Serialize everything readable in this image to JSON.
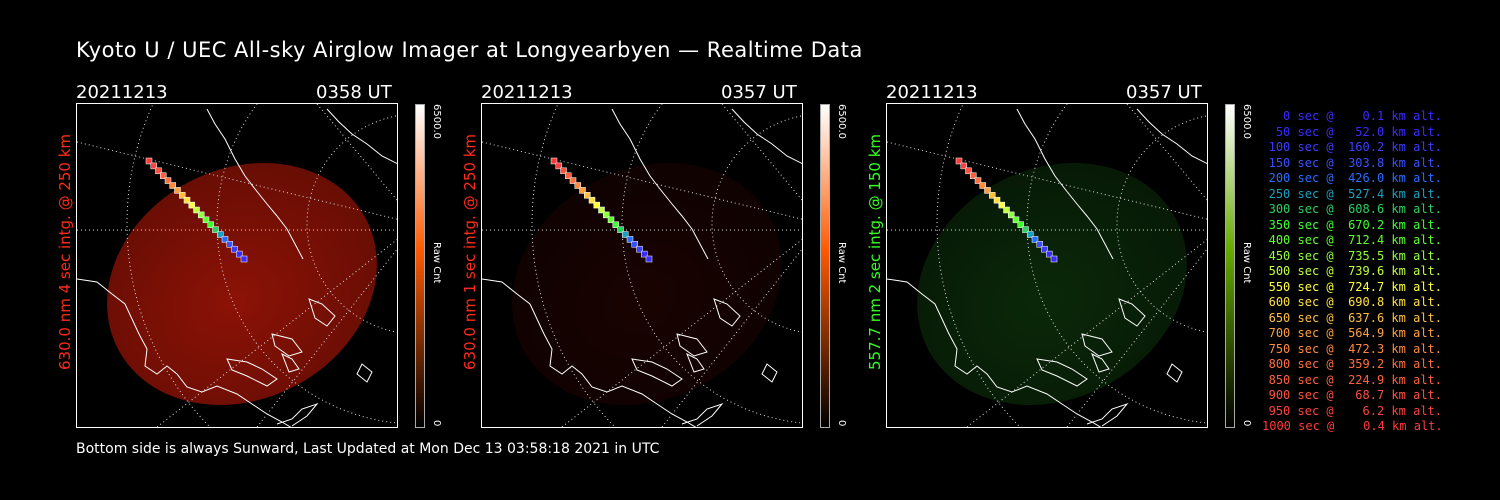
{
  "title": "Kyoto U / UEC All-sky Airglow Imager at Longyearbyen — Realtime Data",
  "footer": "Bottom side is always Sunward, Last Updated at Mon Dec 13 03:58:18 2021 in UTC",
  "panels": [
    {
      "date": "20211213",
      "time": "0358 UT",
      "side_label": "630.0 nm  4 sec intg. @ 250 km",
      "label_color": "#ff2a1a",
      "colorbar": {
        "max": "6500.0",
        "min": "0",
        "unit": "Raw Cnt",
        "color_top": "#ffffff",
        "color_mid": "#ff5a00",
        "color_bottom": "#000000"
      },
      "image_color": "#8c1206",
      "image_level": 0.55
    },
    {
      "date": "20211213",
      "time": "0357 UT",
      "side_label": "630.0 nm  1 sec intg. @ 250 km",
      "label_color": "#ff2a1a",
      "colorbar": {
        "max": "6500.0",
        "min": "0",
        "unit": "Raw Cnt",
        "color_top": "#ffffff",
        "color_mid": "#ff5a00",
        "color_bottom": "#000000"
      },
      "image_color": "#2a0502",
      "image_level": 0.15
    },
    {
      "date": "20211213",
      "time": "0357 UT",
      "side_label": "557.7 nm  2 sec intg. @ 150 km",
      "label_color": "#33ff22",
      "colorbar": {
        "max": "6500.0",
        "min": "0",
        "unit": "Raw Cnt",
        "color_top": "#ffffff",
        "color_mid": "#66aa00",
        "color_bottom": "#000000"
      },
      "image_color": "#0f3a0d",
      "image_level": 0.25
    }
  ],
  "legend": [
    {
      "text": "0 sec @    0.1 km alt.",
      "color": "#3a2cff"
    },
    {
      "text": "50 sec @   52.0 km alt.",
      "color": "#3a2cff"
    },
    {
      "text": "100 sec @  160.2 km alt.",
      "color": "#3a3cff"
    },
    {
      "text": "150 sec @  303.8 km alt.",
      "color": "#3a50ff"
    },
    {
      "text": "200 sec @  426.0 km alt.",
      "color": "#2a6cff"
    },
    {
      "text": "250 sec @  527.4 km alt.",
      "color": "#1aa0c0"
    },
    {
      "text": "300 sec @  608.6 km alt.",
      "color": "#2ad060"
    },
    {
      "text": "350 sec @  670.2 km alt.",
      "color": "#40ff30"
    },
    {
      "text": "400 sec @  712.4 km alt.",
      "color": "#60ff30"
    },
    {
      "text": "450 sec @  735.5 km alt.",
      "color": "#90ff40"
    },
    {
      "text": "500 sec @  739.6 km alt.",
      "color": "#c0ff40"
    },
    {
      "text": "550 sec @  724.7 km alt.",
      "color": "#ffff40"
    },
    {
      "text": "600 sec @  690.8 km alt.",
      "color": "#ffe040"
    },
    {
      "text": "650 sec @  637.6 km alt.",
      "color": "#ffc040"
    },
    {
      "text": "700 sec @  564.9 km alt.",
      "color": "#ffa040"
    },
    {
      "text": "750 sec @  472.3 km alt.",
      "color": "#ff8a40"
    },
    {
      "text": "800 sec @  359.2 km alt.",
      "color": "#ff7040"
    },
    {
      "text": "850 sec @  224.9 km alt.",
      "color": "#ff6040"
    },
    {
      "text": "900 sec @   68.7 km alt.",
      "color": "#ff5040"
    },
    {
      "text": "950 sec @    6.2 km alt.",
      "color": "#ff4040"
    },
    {
      "text": "1000 sec @    0.4 km alt.",
      "color": "#ff3a3a"
    }
  ]
}
